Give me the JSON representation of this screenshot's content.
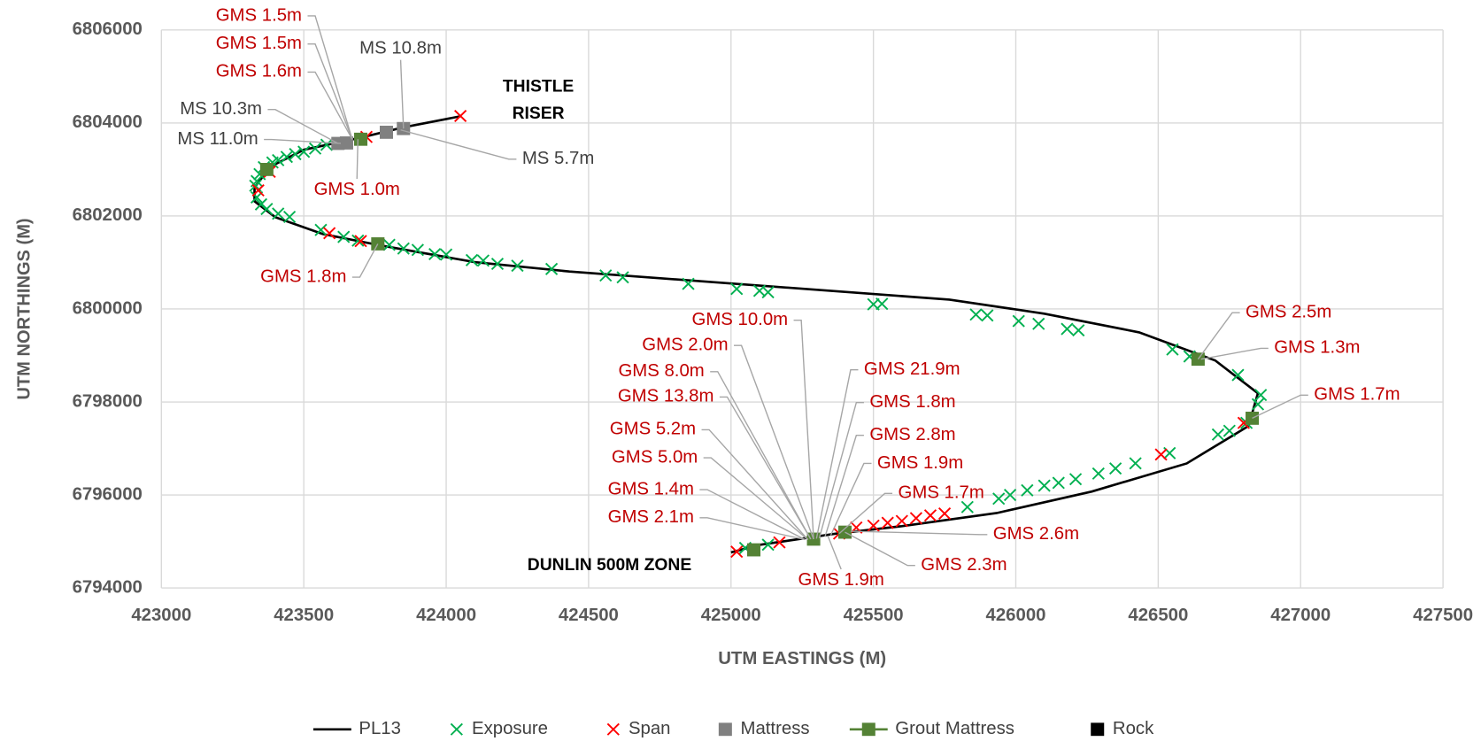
{
  "chart_data": {
    "type": "scatter",
    "xlabel": "UTM EASTINGS (M)",
    "ylabel": "UTM NORTHINGS (M)",
    "xlim": [
      423000,
      427500
    ],
    "xticks": [
      423000,
      423500,
      424000,
      424500,
      425000,
      425500,
      426000,
      426500,
      427000,
      427500
    ],
    "ylim": [
      6794000,
      6806000
    ],
    "yticks": [
      6794000,
      6796000,
      6798000,
      6800000,
      6802000,
      6804000,
      6806000
    ],
    "grid": true,
    "legend": "bottom",
    "series": [
      {
        "name": "PL13",
        "color": "#000000",
        "style": "line",
        "x": [
          424053,
          423850,
          423700,
          423500,
          423383,
          423327,
          423327,
          423400,
          423567,
          423767,
          424100,
          424433,
          425100,
          425767,
          426100,
          426433,
          426700,
          426850,
          426817,
          426600,
          426267,
          425933,
          425600,
          425367,
          425100,
          425000
        ],
        "values": [
          6804148,
          6803906,
          6803685,
          6803423,
          6803060,
          6802617,
          6802316,
          6801973,
          6801611,
          6801369,
          6801007,
          6800805,
          6800503,
          6800201,
          6799899,
          6799497,
          6798893,
          6798188,
          6797483,
          6796678,
          6796074,
          6795611,
          6795329,
          6795168,
          6794926,
          6794765
        ]
      },
      {
        "name": "Exposure",
        "color": "#00b050",
        "style": "x",
        "x": [
          423580,
          423540,
          423500,
          423470,
          423440,
          423410,
          423390,
          423360,
          423345,
          423335,
          423330,
          423335,
          423350,
          423370,
          423410,
          423450,
          423560,
          423640,
          423690,
          423800,
          423850,
          423900,
          423960,
          424000,
          424090,
          424130,
          424180,
          424250,
          424370,
          424560,
          424620,
          424850,
          425020,
          425100,
          425130,
          425500,
          425530,
          425860,
          425900,
          426010,
          426080,
          426180,
          426220,
          426550,
          426610,
          426780,
          426860,
          426850,
          426810,
          426750,
          426710,
          426540,
          426420,
          426350,
          426290,
          426210,
          426150,
          426100,
          426040,
          425980,
          425940,
          425830,
          425130,
          425050
        ],
        "values": [
          6803530,
          6803450,
          6803380,
          6803330,
          6803270,
          6803200,
          6803150,
          6803050,
          6802900,
          6802750,
          6802650,
          6802400,
          6802250,
          6802150,
          6802050,
          6801980,
          6801700,
          6801550,
          6801470,
          6801380,
          6801300,
          6801270,
          6801180,
          6801170,
          6801050,
          6801040,
          6800970,
          6800930,
          6800860,
          6800720,
          6800680,
          6800540,
          6800430,
          6800390,
          6800360,
          6800100,
          6800110,
          6799880,
          6799860,
          6799740,
          6799680,
          6799570,
          6799540,
          6799130,
          6798980,
          6798580,
          6798150,
          6797950,
          6797550,
          6797380,
          6797300,
          6796900,
          6796680,
          6796570,
          6796460,
          6796340,
          6796260,
          6796200,
          6796100,
          6796000,
          6795920,
          6795740,
          6794930,
          6794860
        ]
      },
      {
        "name": "Span",
        "color": "#ff0000",
        "style": "x",
        "x": [
          424050,
          423720,
          423380,
          423340,
          423590,
          423700,
          426510,
          426800,
          425750,
          425700,
          425650,
          425600,
          425550,
          425500,
          425440,
          425380,
          425020,
          425170
        ],
        "values": [
          6804150,
          6803700,
          6802950,
          6802550,
          6801630,
          6801460,
          6796870,
          6797550,
          6795600,
          6795560,
          6795500,
          6795440,
          6795400,
          6795340,
          6795300,
          6795170,
          6794780,
          6794980
        ]
      },
      {
        "name": "Mattress",
        "color": "#808080",
        "style": "square",
        "x": [
          423620,
          423650,
          423790,
          423850
        ],
        "values": [
          6803560,
          6803570,
          6803800,
          6803880
        ]
      },
      {
        "name": "Grout Mattress",
        "color": "#548235",
        "style": "square-line",
        "x": [
          423700,
          423370,
          423760,
          426640,
          426830,
          425290,
          425400,
          425080
        ],
        "values": [
          6803650,
          6803000,
          6801400,
          6798920,
          6797650,
          6795050,
          6795200,
          6794820
        ]
      },
      {
        "name": "Rock",
        "color": "#000000",
        "style": "square",
        "x": [],
        "values": []
      }
    ],
    "labels": [
      {
        "text": "THISTLE RISER"
      },
      {
        "text": "DUNLIN 500M ZONE"
      }
    ],
    "annotations": [
      {
        "text": "GMS 1.5m",
        "color": "#c00000",
        "x": 423670,
        "y": 6803650
      },
      {
        "text": "GMS 1.5m",
        "color": "#c00000",
        "x": 423670,
        "y": 6803650
      },
      {
        "text": "GMS 1.6m",
        "color": "#c00000",
        "x": 423670,
        "y": 6803650
      },
      {
        "text": "MS 10.8m",
        "color": "#404040",
        "x": 423850,
        "y": 6803880
      },
      {
        "text": "MS 10.3m",
        "color": "#404040",
        "x": 423620,
        "y": 6803560
      },
      {
        "text": "MS 11.0m",
        "color": "#404040",
        "x": 423630,
        "y": 6803560
      },
      {
        "text": "MS 5.7m",
        "color": "#404040",
        "x": 423840,
        "y": 6803850
      },
      {
        "text": "GMS 1.0m",
        "color": "#c00000",
        "x": 423690,
        "y": 6803650
      },
      {
        "text": "GMS 1.8m",
        "color": "#c00000",
        "x": 423760,
        "y": 6801400
      },
      {
        "text": "GMS 2.5m",
        "color": "#c00000",
        "x": 426640,
        "y": 6798920
      },
      {
        "text": "GMS 1.3m",
        "color": "#c00000",
        "x": 426650,
        "y": 6798920
      },
      {
        "text": "GMS 1.7m",
        "color": "#c00000",
        "x": 426830,
        "y": 6797650
      },
      {
        "text": "GMS 10.0m",
        "color": "#c00000",
        "x": 425290,
        "y": 6795050
      },
      {
        "text": "GMS 2.0m",
        "color": "#c00000",
        "x": 425290,
        "y": 6795050
      },
      {
        "text": "GMS 8.0m",
        "color": "#c00000",
        "x": 425280,
        "y": 6795050
      },
      {
        "text": "GMS 13.8m",
        "color": "#c00000",
        "x": 425280,
        "y": 6795050
      },
      {
        "text": "GMS 5.2m",
        "color": "#c00000",
        "x": 425270,
        "y": 6795040
      },
      {
        "text": "GMS 5.0m",
        "color": "#c00000",
        "x": 425270,
        "y": 6795040
      },
      {
        "text": "GMS 1.4m",
        "color": "#c00000",
        "x": 425260,
        "y": 6795040
      },
      {
        "text": "GMS 2.1m",
        "color": "#c00000",
        "x": 425260,
        "y": 6795040
      },
      {
        "text": "GMS 21.9m",
        "color": "#c00000",
        "x": 425300,
        "y": 6795060
      },
      {
        "text": "GMS 1.8m",
        "color": "#c00000",
        "x": 425310,
        "y": 6795070
      },
      {
        "text": "GMS 2.8m",
        "color": "#c00000",
        "x": 425330,
        "y": 6795100
      },
      {
        "text": "GMS 1.9m",
        "color": "#c00000",
        "x": 425350,
        "y": 6795130
      },
      {
        "text": "GMS 1.7m",
        "color": "#c00000",
        "x": 425380,
        "y": 6795170
      },
      {
        "text": "GMS 2.6m",
        "color": "#c00000",
        "x": 425420,
        "y": 6795220
      },
      {
        "text": "GMS 2.3m",
        "color": "#c00000",
        "x": 425400,
        "y": 6795200
      },
      {
        "text": "GMS 1.9m",
        "color": "#c00000",
        "x": 425340,
        "y": 6795120
      }
    ]
  }
}
